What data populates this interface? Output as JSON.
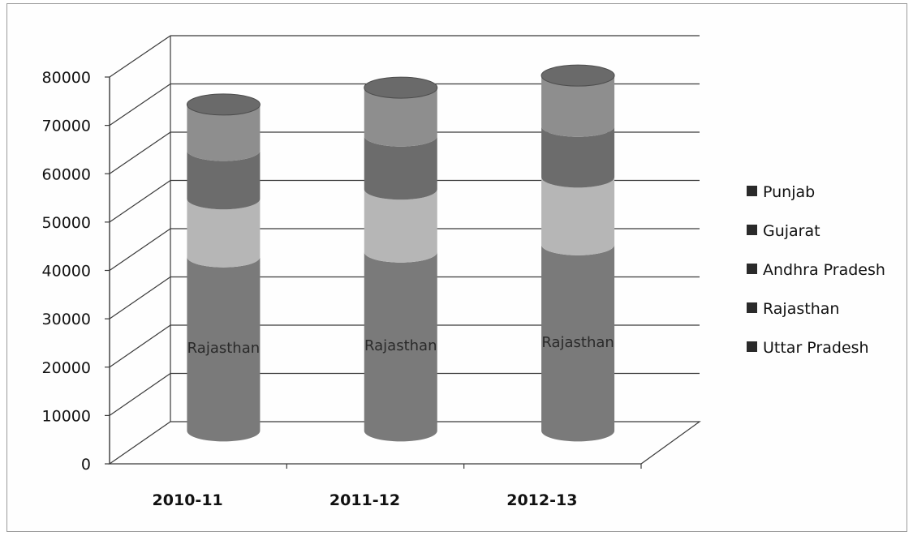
{
  "chart_data": {
    "type": "bar",
    "style": "3d-stacked-cylinder",
    "categories": [
      "2010-11",
      "2011-12",
      "2012-13"
    ],
    "series": [
      {
        "name": "Uttar Pradesh",
        "values": [
          0,
          0,
          0
        ],
        "color": "#5e5e5e"
      },
      {
        "name": "Rajasthan",
        "values": [
          36000,
          37000,
          38500
        ],
        "color": "#7a7a7a"
      },
      {
        "name": "Andhra Pradesh",
        "values": [
          12000,
          13000,
          14000
        ],
        "color": "#b6b6b6"
      },
      {
        "name": "Gujarat",
        "values": [
          10000,
          11000,
          10500
        ],
        "color": "#6c6c6c"
      },
      {
        "name": "Punjab",
        "values": [
          9500,
          10000,
          10500
        ],
        "color": "#8e8e8e"
      }
    ],
    "segment_labels": [
      "Rajasthan",
      "Rajasthan",
      "Rajasthan"
    ],
    "yticks": [
      0,
      10000,
      20000,
      30000,
      40000,
      50000,
      60000,
      70000,
      80000
    ],
    "ylim": [
      0,
      80000
    ],
    "legend_order": [
      "Punjab",
      "Gujarat",
      "Andhra Pradesh",
      "Rajasthan",
      "Uttar Pradesh"
    ],
    "legend_position": "right",
    "grid": true,
    "title": "",
    "xlabel": "",
    "ylabel": ""
  }
}
